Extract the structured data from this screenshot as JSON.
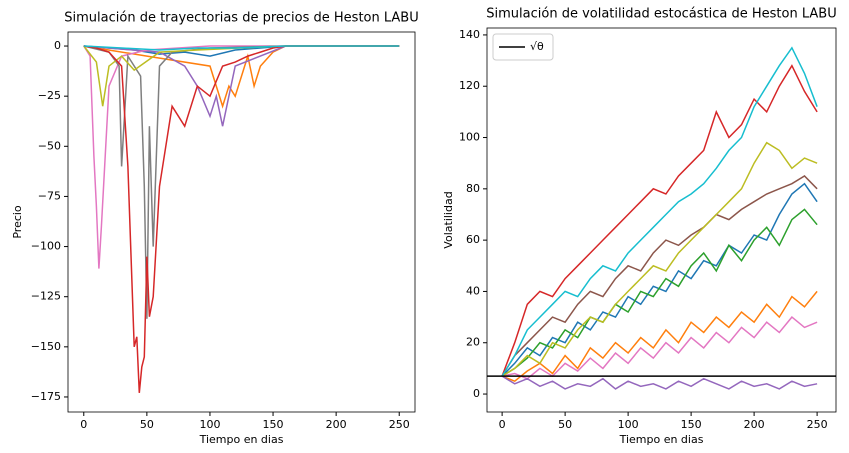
{
  "chart_data": [
    {
      "type": "line",
      "title": "Simulación de trayectorias de precios de Heston LABU",
      "xlabel": "Tiempo en dias",
      "ylabel": "Precio",
      "xlim": [
        -12.5,
        262.5
      ],
      "ylim": [
        -182.5,
        7
      ],
      "xticks": [
        0,
        50,
        100,
        150,
        200,
        250
      ],
      "yticks": [
        0,
        {
          "value": -25,
          "label": "−25"
        },
        {
          "value": -50,
          "label": "−50"
        },
        {
          "value": -75,
          "label": "−75"
        },
        {
          "value": -100,
          "label": "−100"
        },
        {
          "value": -125,
          "label": "−125"
        },
        {
          "value": -150,
          "label": "−150"
        },
        {
          "value": -175,
          "label": "−175"
        }
      ],
      "series": [
        {
          "color": "#1f77b4",
          "x": [
            0,
            20,
            40,
            60,
            80,
            100,
            120,
            140,
            160,
            250
          ],
          "values": [
            0,
            -1,
            -2,
            -4,
            -3,
            -5,
            -2,
            -1,
            0,
            0
          ]
        },
        {
          "color": "#ff7f0e",
          "x": [
            0,
            50,
            100,
            110,
            115,
            120,
            130,
            135,
            140,
            150,
            160,
            250
          ],
          "values": [
            0,
            -5,
            -10,
            -30,
            -20,
            -25,
            -5,
            -20,
            -10,
            -3,
            0,
            0
          ]
        },
        {
          "color": "#9467bd",
          "x": [
            0,
            60,
            80,
            90,
            100,
            105,
            110,
            120,
            160,
            250
          ],
          "values": [
            0,
            -3,
            -10,
            -20,
            -35,
            -25,
            -40,
            -10,
            0,
            0
          ]
        },
        {
          "color": "#e377c2",
          "x": [
            0,
            5,
            8,
            10,
            12,
            14,
            20,
            30,
            50,
            100,
            160,
            250
          ],
          "values": [
            0,
            -5,
            -55,
            -80,
            -111,
            -90,
            -20,
            -5,
            -2,
            0,
            0,
            0
          ]
        },
        {
          "color": "#7f7f7f",
          "x": [
            0,
            20,
            28,
            30,
            35,
            45,
            48,
            50,
            52,
            55,
            60,
            70,
            100,
            160,
            250
          ],
          "values": [
            0,
            -3,
            -10,
            -60,
            -5,
            -15,
            -70,
            -136,
            -40,
            -100,
            -10,
            -3,
            -1,
            0,
            0
          ]
        },
        {
          "color": "#bcbd22",
          "x": [
            0,
            10,
            15,
            20,
            30,
            40,
            60,
            90,
            160,
            250
          ],
          "values": [
            0,
            -8,
            -30,
            -10,
            -5,
            -12,
            -3,
            -2,
            0,
            0
          ]
        },
        {
          "color": "#d62728",
          "x": [
            0,
            10,
            20,
            30,
            35,
            40,
            42,
            44,
            46,
            48,
            50,
            52,
            55,
            60,
            70,
            80,
            90,
            100,
            110,
            120,
            130,
            140,
            150,
            160,
            250
          ],
          "values": [
            0,
            -1,
            -3,
            -10,
            -60,
            -150,
            -145,
            -173,
            -160,
            -155,
            -105,
            -135,
            -125,
            -70,
            -30,
            -40,
            -20,
            -25,
            -10,
            -8,
            -5,
            -3,
            -1,
            0,
            0
          ]
        },
        {
          "color": "#17becf",
          "x": [
            0,
            30,
            60,
            90,
            120,
            160,
            250
          ],
          "values": [
            0,
            -1,
            -2,
            -1,
            -1,
            0,
            0
          ]
        }
      ]
    },
    {
      "type": "line",
      "title": "Simulación de volatilidad estocástica de Heston LABU",
      "xlabel": "Tiempo en dias",
      "ylabel": "Volatilidad",
      "xlim": [
        -12,
        265
      ],
      "ylim": [
        -7,
        142.7
      ],
      "xticks": [
        0,
        50,
        100,
        150,
        200,
        250
      ],
      "yticks": [
        0,
        20,
        40,
        60,
        80,
        100,
        120,
        140
      ],
      "hline": {
        "name": "√θ",
        "value": 7,
        "color": "#000000"
      },
      "legend": "upper left",
      "x": [
        0,
        10,
        20,
        30,
        40,
        50,
        60,
        70,
        80,
        90,
        100,
        110,
        120,
        130,
        140,
        150,
        160,
        170,
        180,
        190,
        200,
        210,
        220,
        230,
        240,
        250
      ],
      "series": [
        {
          "color": "#1f77b4",
          "values": [
            7,
            12,
            18,
            15,
            22,
            20,
            28,
            25,
            32,
            30,
            38,
            35,
            42,
            40,
            48,
            45,
            52,
            50,
            58,
            55,
            62,
            60,
            70,
            78,
            82,
            75
          ]
        },
        {
          "color": "#2ca02c",
          "values": [
            7,
            10,
            14,
            20,
            18,
            25,
            22,
            30,
            28,
            35,
            32,
            40,
            38,
            45,
            42,
            50,
            55,
            48,
            58,
            52,
            60,
            65,
            58,
            68,
            72,
            66
          ]
        },
        {
          "color": "#ff7f0e",
          "values": [
            7,
            5,
            9,
            12,
            8,
            15,
            10,
            18,
            14,
            20,
            16,
            22,
            18,
            25,
            20,
            28,
            24,
            30,
            26,
            32,
            28,
            35,
            30,
            38,
            34,
            40
          ]
        },
        {
          "color": "#e377c2",
          "values": [
            7,
            8,
            6,
            10,
            7,
            12,
            9,
            14,
            10,
            16,
            12,
            18,
            14,
            20,
            16,
            22,
            18,
            24,
            20,
            26,
            22,
            28,
            24,
            30,
            26,
            28
          ]
        },
        {
          "color": "#8c564b",
          "values": [
            7,
            15,
            20,
            25,
            30,
            28,
            35,
            40,
            38,
            45,
            50,
            48,
            55,
            60,
            58,
            62,
            65,
            70,
            68,
            72,
            75,
            78,
            80,
            82,
            85,
            80
          ]
        },
        {
          "color": "#bcbd22",
          "values": [
            7,
            10,
            15,
            12,
            20,
            18,
            25,
            30,
            28,
            35,
            40,
            45,
            50,
            48,
            55,
            60,
            65,
            70,
            75,
            80,
            90,
            98,
            95,
            88,
            92,
            90
          ]
        },
        {
          "color": "#9467bd",
          "values": [
            7,
            4,
            6,
            3,
            5,
            2,
            4,
            3,
            6,
            2,
            5,
            3,
            4,
            2,
            5,
            3,
            6,
            4,
            2,
            5,
            3,
            4,
            2,
            5,
            3,
            4
          ]
        },
        {
          "color": "#d62728",
          "values": [
            7,
            20,
            35,
            40,
            38,
            45,
            50,
            55,
            60,
            65,
            70,
            75,
            80,
            78,
            85,
            90,
            95,
            110,
            100,
            105,
            115,
            110,
            120,
            128,
            118,
            110
          ]
        },
        {
          "color": "#17becf",
          "values": [
            7,
            15,
            25,
            30,
            35,
            40,
            38,
            45,
            50,
            48,
            55,
            60,
            65,
            70,
            75,
            78,
            82,
            88,
            95,
            100,
            112,
            120,
            128,
            135,
            125,
            112
          ]
        }
      ]
    }
  ]
}
